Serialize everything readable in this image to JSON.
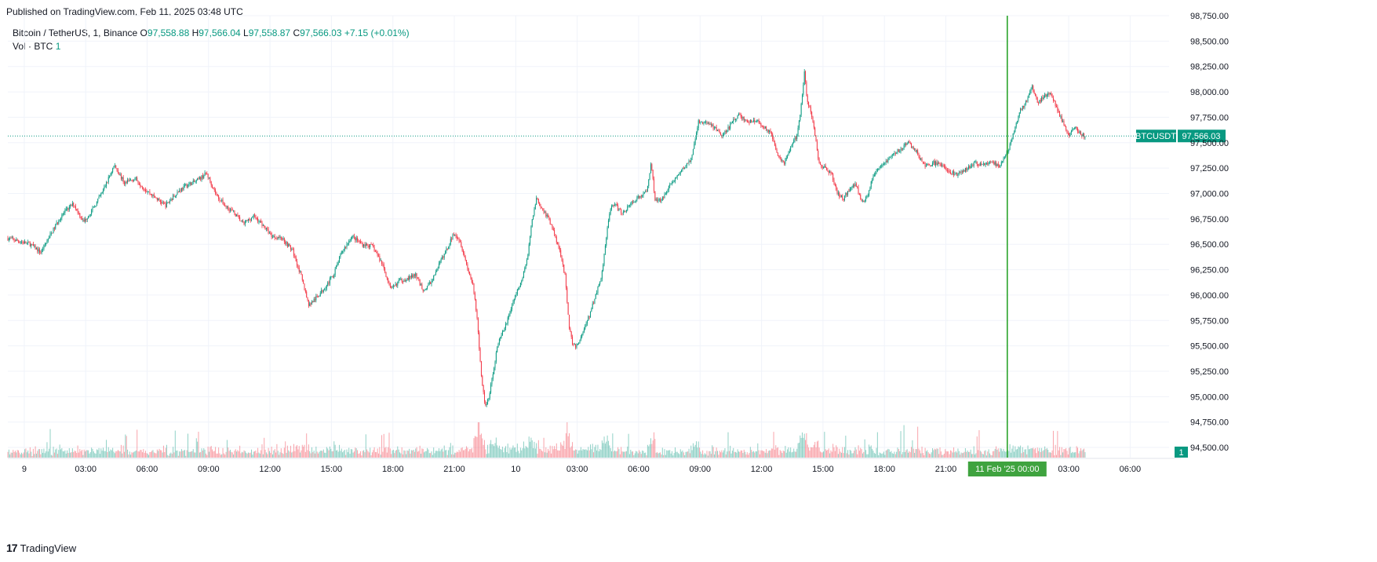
{
  "published": "Published on TradingView.com, Feb 11, 2025 03:48 UTC",
  "legend": {
    "symbol": "Bitcoin / TetherUS, 1, Binance",
    "o_label": "O",
    "o": "97,558.88",
    "h_label": "H",
    "h": "97,566.04",
    "l_label": "L",
    "l": "97,558.87",
    "c_label": "C",
    "c": "97,566.03",
    "change": "+7.15 (+0.01%)",
    "vol_label": "Vol · BTC",
    "vol": "1"
  },
  "footer": {
    "brand_logo": "17",
    "brand": "TradingView"
  },
  "colors": {
    "up": "#089981",
    "down": "#f23645",
    "grid": "#f0f3fa",
    "axis_text": "#131722",
    "crosshair": "#1e9e1e",
    "price_tag": "#089981"
  },
  "chart_data": {
    "type": "candlestick",
    "title": "Bitcoin / TetherUS, 1, Binance",
    "symbol_tag": "BTCUSDT",
    "last_price": 97566.03,
    "last_price_label": "97,566.03",
    "volume_tag": "1",
    "ylim": [
      94400,
      98750
    ],
    "y_ticks": [
      "98,750.00",
      "98,500.00",
      "98,250.00",
      "98,000.00",
      "97,750.00",
      "97,500.00",
      "97,250.00",
      "97,000.00",
      "96,750.00",
      "96,500.00",
      "96,250.00",
      "96,000.00",
      "95,750.00",
      "95,500.00",
      "95,250.00",
      "95,000.00",
      "94,750.00",
      "94,500.00"
    ],
    "y_tick_values": [
      98750,
      98500,
      98250,
      98000,
      97750,
      97500,
      97250,
      97000,
      96750,
      96500,
      96250,
      96000,
      95750,
      95500,
      95250,
      95000,
      94750,
      94500
    ],
    "x_ticks": [
      {
        "label": "9",
        "hours": 0
      },
      {
        "label": "03:00",
        "hours": 3
      },
      {
        "label": "06:00",
        "hours": 6
      },
      {
        "label": "09:00",
        "hours": 9
      },
      {
        "label": "12:00",
        "hours": 12
      },
      {
        "label": "15:00",
        "hours": 15
      },
      {
        "label": "18:00",
        "hours": 18
      },
      {
        "label": "21:00",
        "hours": 21
      },
      {
        "label": "10",
        "hours": 24
      },
      {
        "label": "03:00",
        "hours": 27
      },
      {
        "label": "06:00",
        "hours": 30
      },
      {
        "label": "09:00",
        "hours": 33
      },
      {
        "label": "12:00",
        "hours": 36
      },
      {
        "label": "15:00",
        "hours": 39
      },
      {
        "label": "18:00",
        "hours": 42
      },
      {
        "label": "21:00",
        "hours": 45
      },
      {
        "label": "03:00",
        "hours": 51
      },
      {
        "label": "06:00",
        "hours": 54
      }
    ],
    "x_start_hours": -0.8,
    "x_end_hours": 55.9,
    "last_bar_hours": 51.8,
    "crosshair": {
      "hours": 48,
      "label": "11 Feb '25   00:00"
    },
    "path": [
      [
        -0.8,
        96560
      ],
      [
        0.3,
        96500
      ],
      [
        0.8,
        96420
      ],
      [
        1.3,
        96600
      ],
      [
        1.8,
        96780
      ],
      [
        2.4,
        96900
      ],
      [
        2.9,
        96720
      ],
      [
        3.4,
        96860
      ],
      [
        3.9,
        97050
      ],
      [
        4.4,
        97280
      ],
      [
        4.9,
        97100
      ],
      [
        5.4,
        97150
      ],
      [
        5.9,
        97040
      ],
      [
        6.4,
        96960
      ],
      [
        6.9,
        96880
      ],
      [
        7.4,
        97000
      ],
      [
        7.9,
        97080
      ],
      [
        8.4,
        97120
      ],
      [
        8.9,
        97200
      ],
      [
        9.4,
        96980
      ],
      [
        9.8,
        96880
      ],
      [
        10.2,
        96820
      ],
      [
        10.7,
        96700
      ],
      [
        11.2,
        96780
      ],
      [
        11.6,
        96700
      ],
      [
        12.1,
        96580
      ],
      [
        12.6,
        96560
      ],
      [
        13.1,
        96440
      ],
      [
        13.5,
        96200
      ],
      [
        13.9,
        95900
      ],
      [
        14.3,
        95980
      ],
      [
        14.7,
        96080
      ],
      [
        15.1,
        96200
      ],
      [
        15.5,
        96420
      ],
      [
        16.0,
        96580
      ],
      [
        16.5,
        96500
      ],
      [
        17.0,
        96480
      ],
      [
        17.5,
        96300
      ],
      [
        17.9,
        96050
      ],
      [
        18.3,
        96140
      ],
      [
        18.7,
        96160
      ],
      [
        19.1,
        96200
      ],
      [
        19.5,
        96040
      ],
      [
        19.9,
        96140
      ],
      [
        20.3,
        96320
      ],
      [
        20.7,
        96480
      ],
      [
        21.0,
        96620
      ],
      [
        21.3,
        96520
      ],
      [
        21.6,
        96300
      ],
      [
        21.9,
        96100
      ],
      [
        22.1,
        95800
      ],
      [
        22.3,
        95250
      ],
      [
        22.5,
        94900
      ],
      [
        22.7,
        95000
      ],
      [
        22.9,
        95250
      ],
      [
        23.1,
        95500
      ],
      [
        23.5,
        95700
      ],
      [
        23.9,
        95950
      ],
      [
        24.3,
        96150
      ],
      [
        24.6,
        96400
      ],
      [
        24.8,
        96750
      ],
      [
        25.0,
        96950
      ],
      [
        25.3,
        96850
      ],
      [
        25.6,
        96750
      ],
      [
        25.9,
        96600
      ],
      [
        26.2,
        96400
      ],
      [
        26.4,
        96200
      ],
      [
        26.6,
        95700
      ],
      [
        26.8,
        95500
      ],
      [
        27.0,
        95500
      ],
      [
        27.3,
        95650
      ],
      [
        27.6,
        95800
      ],
      [
        27.9,
        96000
      ],
      [
        28.2,
        96200
      ],
      [
        28.4,
        96550
      ],
      [
        28.6,
        96850
      ],
      [
        28.8,
        96900
      ],
      [
        29.2,
        96800
      ],
      [
        29.6,
        96900
      ],
      [
        30.0,
        96960
      ],
      [
        30.4,
        97020
      ],
      [
        30.6,
        97300
      ],
      [
        30.8,
        96950
      ],
      [
        31.1,
        96920
      ],
      [
        31.4,
        97050
      ],
      [
        31.8,
        97150
      ],
      [
        32.2,
        97250
      ],
      [
        32.6,
        97350
      ],
      [
        32.9,
        97700
      ],
      [
        33.3,
        97700
      ],
      [
        33.7,
        97650
      ],
      [
        34.1,
        97560
      ],
      [
        34.5,
        97680
      ],
      [
        34.9,
        97780
      ],
      [
        35.3,
        97700
      ],
      [
        35.7,
        97720
      ],
      [
        36.1,
        97660
      ],
      [
        36.5,
        97580
      ],
      [
        36.8,
        97380
      ],
      [
        37.1,
        97300
      ],
      [
        37.4,
        97440
      ],
      [
        37.7,
        97560
      ],
      [
        37.9,
        97800
      ],
      [
        38.1,
        98200
      ],
      [
        38.2,
        97950
      ],
      [
        38.4,
        97800
      ],
      [
        38.6,
        97600
      ],
      [
        38.8,
        97300
      ],
      [
        39.1,
        97250
      ],
      [
        39.4,
        97200
      ],
      [
        39.7,
        97000
      ],
      [
        40.0,
        96950
      ],
      [
        40.3,
        97050
      ],
      [
        40.6,
        97100
      ],
      [
        40.9,
        96900
      ],
      [
        41.2,
        97000
      ],
      [
        41.5,
        97200
      ],
      [
        41.8,
        97250
      ],
      [
        42.1,
        97320
      ],
      [
        42.4,
        97380
      ],
      [
        42.8,
        97440
      ],
      [
        43.2,
        97500
      ],
      [
        43.6,
        97400
      ],
      [
        44.0,
        97260
      ],
      [
        44.4,
        97300
      ],
      [
        44.8,
        97280
      ],
      [
        45.2,
        97220
      ],
      [
        45.6,
        97180
      ],
      [
        46.0,
        97240
      ],
      [
        46.4,
        97300
      ],
      [
        46.8,
        97280
      ],
      [
        47.2,
        97320
      ],
      [
        47.6,
        97260
      ],
      [
        48.0,
        97400
      ],
      [
        48.3,
        97600
      ],
      [
        48.6,
        97800
      ],
      [
        48.9,
        97900
      ],
      [
        49.2,
        98050
      ],
      [
        49.5,
        97880
      ],
      [
        49.8,
        97960
      ],
      [
        50.1,
        98000
      ],
      [
        50.4,
        97850
      ],
      [
        50.7,
        97700
      ],
      [
        51.0,
        97580
      ],
      [
        51.3,
        97650
      ],
      [
        51.6,
        97580
      ],
      [
        51.8,
        97566
      ]
    ]
  }
}
